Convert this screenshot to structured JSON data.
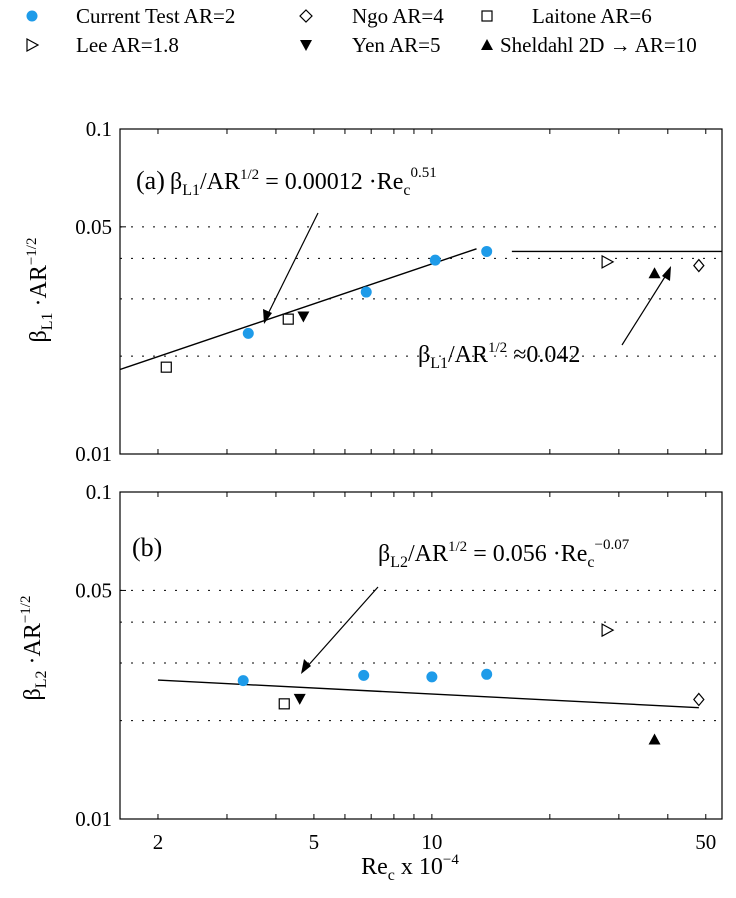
{
  "legend": {
    "items": [
      {
        "label": "Current Test AR=2",
        "marker": "circle-filled",
        "color": "#1E9BE9"
      },
      {
        "label": "Lee AR=1.8",
        "marker": "triangle-right-open"
      },
      {
        "label": "Ngo AR=4",
        "marker": "diamond-open"
      },
      {
        "label": "Yen AR=5",
        "marker": "triangle-down-filled"
      },
      {
        "label": "Laitone AR=6",
        "marker": "square-open"
      },
      {
        "label": "Sheldahl 2D → AR=10",
        "marker": "triangle-up-filled"
      }
    ]
  },
  "colors": {
    "current_test": "#1E9BE9",
    "markers": "#000000",
    "grid": "#000000"
  },
  "chart_data": [
    {
      "type": "scatter",
      "panel_label": "(a)",
      "ylabel": {
        "base": "β",
        "sub": "L1",
        "mid": " ·AR",
        "sup": "−1/2"
      },
      "xscale": "log",
      "yscale": "log",
      "xlim": [
        1.6,
        55
      ],
      "ylim": [
        0.01,
        0.1
      ],
      "xticks": [],
      "yticks": [
        {
          "value": 0.01,
          "label": "0.01"
        },
        {
          "value": 0.05,
          "label": "0.05"
        },
        {
          "value": 0.1,
          "label": "0.1"
        }
      ],
      "grid": "horizontal-dotted",
      "series": [
        {
          "name": "Current Test AR=2",
          "marker": "circle-filled",
          "x": [
            3.4,
            6.8,
            10.2,
            13.8
          ],
          "y": [
            0.0235,
            0.0315,
            0.0395,
            0.042
          ]
        },
        {
          "name": "Lee AR=1.8",
          "marker": "triangle-right-open",
          "x": [
            28
          ],
          "y": [
            0.039
          ]
        },
        {
          "name": "Ngo AR=4",
          "marker": "diamond-open",
          "x": [
            48
          ],
          "y": [
            0.038
          ]
        },
        {
          "name": "Yen AR=5",
          "marker": "triangle-down-filled",
          "x": [
            4.7
          ],
          "y": [
            0.0265
          ]
        },
        {
          "name": "Laitone AR=6",
          "marker": "square-open",
          "x": [
            2.1,
            4.3
          ],
          "y": [
            0.0185,
            0.026
          ]
        },
        {
          "name": "Sheldahl 2D → AR=10",
          "marker": "triangle-up-filled",
          "x": [
            37
          ],
          "y": [
            0.036
          ]
        }
      ],
      "fit_lines": [
        {
          "x": [
            1.6,
            13.0
          ],
          "y": [
            0.0182,
            0.0428
          ]
        },
        {
          "x": [
            16,
            55
          ],
          "y": [
            0.042,
            0.042
          ]
        }
      ],
      "annotations": [
        {
          "id": "fit",
          "parts": {
            "lhs_base": "β",
            "lhs_sub": "L1",
            "lhs_rest": "/AR",
            "lhs_sup": "1/2",
            "rhs": " = 0.00012 ·Re",
            "rhs_sub": "c",
            "rhs_sup": "0.51"
          }
        },
        {
          "id": "approx",
          "parts": {
            "lhs_base": "β",
            "lhs_sub": "L1",
            "lhs_rest": "/AR",
            "lhs_sup": "1/2",
            "rhs": " ≈0.042"
          }
        }
      ]
    },
    {
      "type": "scatter",
      "panel_label": "(b)",
      "ylabel": {
        "base": "β",
        "sub": "L2",
        "mid": " ·AR",
        "sup": "−1/2"
      },
      "xlabel": {
        "base": "Re",
        "sub": "c",
        "rest": " x 10",
        "sup": "−4"
      },
      "xscale": "log",
      "yscale": "log",
      "xlim": [
        1.6,
        55
      ],
      "ylim": [
        0.01,
        0.1
      ],
      "xticks": [
        {
          "value": 2,
          "label": "2"
        },
        {
          "value": 5,
          "label": "5"
        },
        {
          "value": 10,
          "label": "10"
        },
        {
          "value": 50,
          "label": "50"
        }
      ],
      "yticks": [
        {
          "value": 0.01,
          "label": "0.01"
        },
        {
          "value": 0.05,
          "label": "0.05"
        },
        {
          "value": 0.1,
          "label": "0.1"
        }
      ],
      "grid": "horizontal-dotted",
      "series": [
        {
          "name": "Current Test AR=2",
          "marker": "circle-filled",
          "x": [
            3.3,
            6.7,
            10.0,
            13.8
          ],
          "y": [
            0.0265,
            0.0275,
            0.0272,
            0.0277
          ]
        },
        {
          "name": "Lee AR=1.8",
          "marker": "triangle-right-open",
          "x": [
            28
          ],
          "y": [
            0.0378
          ]
        },
        {
          "name": "Ngo AR=4",
          "marker": "diamond-open",
          "x": [
            48
          ],
          "y": [
            0.0232
          ]
        },
        {
          "name": "Yen AR=5",
          "marker": "triangle-down-filled",
          "x": [
            4.6
          ],
          "y": [
            0.0233
          ]
        },
        {
          "name": "Laitone AR=6",
          "marker": "square-open",
          "x": [
            4.2
          ],
          "y": [
            0.0225
          ]
        },
        {
          "name": "Sheldahl 2D → AR=10",
          "marker": "triangle-up-filled",
          "x": [
            37
          ],
          "y": [
            0.0175
          ]
        }
      ],
      "fit_lines": [
        {
          "x": [
            2.0,
            48.0
          ],
          "y": [
            0.0266,
            0.0219
          ]
        }
      ],
      "annotations": [
        {
          "id": "fit",
          "parts": {
            "lhs_base": "β",
            "lhs_sub": "L2",
            "lhs_rest": "/AR",
            "lhs_sup": "1/2",
            "rhs": " = 0.056 ·Re",
            "rhs_sub": "c",
            "rhs_sup": "−0.07"
          }
        }
      ]
    }
  ]
}
